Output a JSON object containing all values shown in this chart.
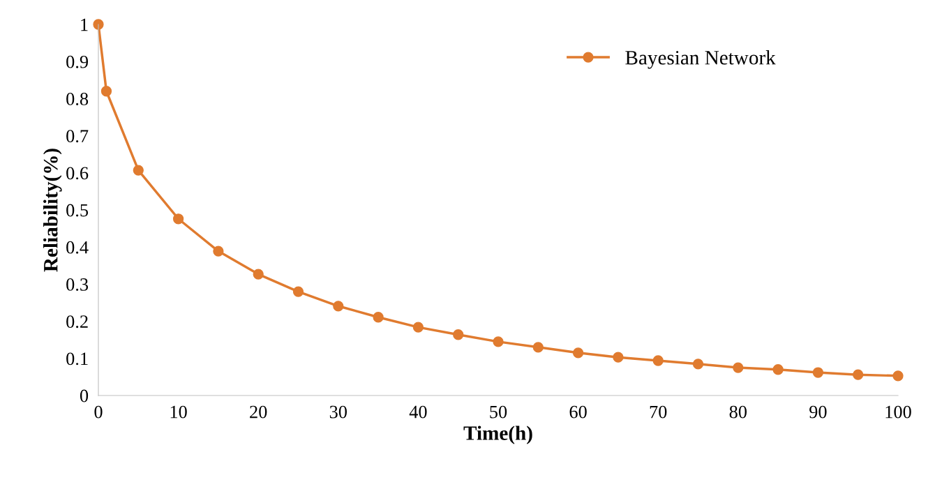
{
  "chart_data": {
    "type": "line",
    "xlabel": "Time(h)",
    "ylabel": "Reliability(%)",
    "x": [
      0,
      1,
      5,
      10,
      15,
      20,
      25,
      30,
      35,
      40,
      45,
      50,
      55,
      60,
      65,
      70,
      75,
      80,
      85,
      90,
      95,
      100
    ],
    "series": [
      {
        "name": "Bayesian Network",
        "color": "#e07b2f",
        "values": [
          1,
          0.82,
          0.607,
          0.476,
          0.389,
          0.327,
          0.28,
          0.241,
          0.211,
          0.184,
          0.164,
          0.145,
          0.13,
          0.115,
          0.103,
          0.094,
          0.085,
          0.075,
          0.07,
          0.062,
          0.056,
          0.053
        ]
      }
    ],
    "xlim": [
      0,
      100
    ],
    "xticks": [
      0,
      10,
      20,
      30,
      40,
      50,
      60,
      70,
      80,
      90,
      100
    ],
    "ylim": [
      0,
      1
    ],
    "yticks": [
      0,
      0.1,
      0.2,
      0.3,
      0.4,
      0.5,
      0.6,
      0.7,
      0.8,
      0.9,
      1
    ],
    "grid": false,
    "legend": "top right",
    "marker": "circle",
    "line_style": "solid"
  }
}
